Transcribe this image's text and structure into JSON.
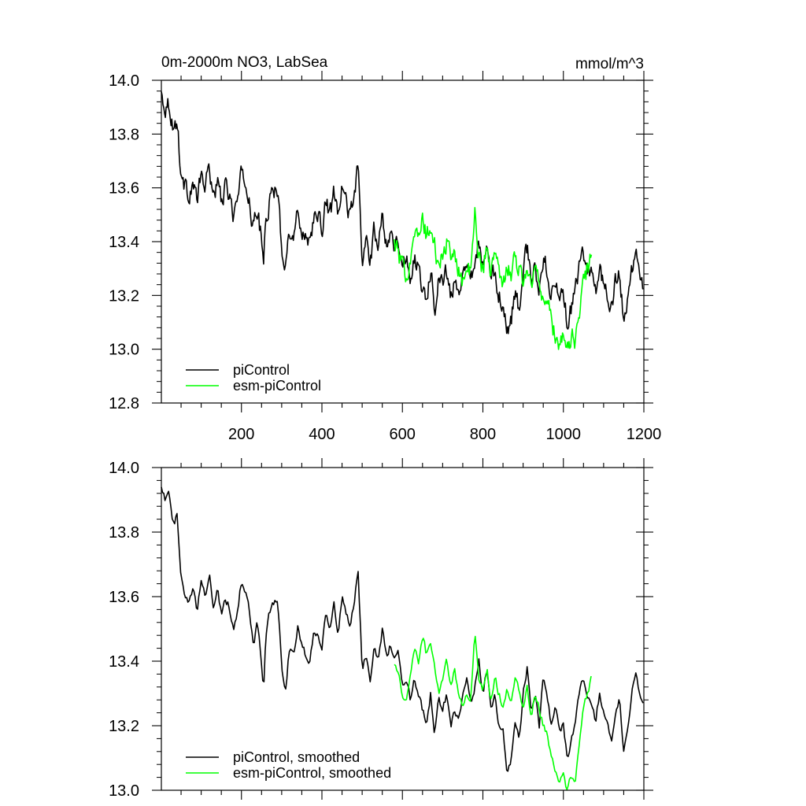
{
  "chart_data": [
    {
      "type": "line",
      "title": "0m-2000m NO3, LabSea",
      "units": "mmol/m^3",
      "xlim": [
        1,
        1200
      ],
      "ylim": [
        12.8,
        14.0
      ],
      "xticks": [
        200,
        400,
        600,
        800,
        1000,
        1200
      ],
      "xtick_labels": [
        "200",
        "400",
        "600",
        "800",
        "1000",
        "1200"
      ],
      "yticks": [
        12.8,
        13.0,
        13.2,
        13.4,
        13.6,
        13.8,
        14.0
      ],
      "ytick_labels": [
        "12.8",
        "13.0",
        "13.2",
        "13.4",
        "13.6",
        "13.8",
        "14.0"
      ],
      "legend_position": "bottom-left",
      "series": [
        {
          "name": "piControl",
          "color": "#000000",
          "x": [
            1,
            10,
            20,
            30,
            40,
            50,
            60,
            70,
            80,
            90,
            100,
            110,
            120,
            130,
            140,
            150,
            160,
            170,
            180,
            190,
            200,
            210,
            220,
            230,
            240,
            250,
            255,
            260,
            270,
            280,
            290,
            300,
            310,
            320,
            330,
            340,
            350,
            360,
            370,
            380,
            390,
            400,
            410,
            420,
            430,
            440,
            450,
            460,
            470,
            480,
            490,
            500,
            510,
            520,
            530,
            540,
            550,
            560,
            570,
            580,
            590,
            600,
            610,
            620,
            630,
            640,
            650,
            660,
            670,
            680,
            690,
            700,
            710,
            720,
            730,
            740,
            750,
            760,
            770,
            780,
            790,
            800,
            810,
            820,
            830,
            840,
            850,
            860,
            870,
            880,
            890,
            900,
            910,
            920,
            930,
            940,
            950,
            960,
            970,
            980,
            990,
            1000,
            1010,
            1020,
            1030,
            1040,
            1050,
            1060,
            1070,
            1080,
            1090,
            1100,
            1110,
            1120,
            1130,
            1140,
            1150,
            1160,
            1170,
            1180,
            1190,
            1200
          ],
          "values": [
            13.95,
            13.9,
            13.92,
            13.82,
            13.85,
            13.65,
            13.6,
            13.58,
            13.62,
            13.55,
            13.65,
            13.6,
            13.68,
            13.57,
            13.62,
            13.55,
            13.6,
            13.57,
            13.5,
            13.55,
            13.65,
            13.62,
            13.55,
            13.45,
            13.52,
            13.4,
            13.32,
            13.48,
            13.55,
            13.58,
            13.6,
            13.38,
            13.32,
            13.45,
            13.42,
            13.5,
            13.45,
            13.42,
            13.4,
            13.5,
            13.48,
            13.45,
            13.55,
            13.5,
            13.58,
            13.48,
            13.6,
            13.55,
            13.5,
            13.58,
            13.68,
            13.3,
            13.42,
            13.32,
            13.45,
            13.38,
            13.5,
            13.4,
            13.45,
            13.38,
            13.42,
            13.3,
            13.35,
            13.25,
            13.35,
            13.3,
            13.22,
            13.2,
            13.3,
            13.15,
            13.28,
            13.25,
            13.3,
            13.18,
            13.25,
            13.2,
            13.3,
            13.35,
            13.28,
            13.32,
            13.4,
            13.3,
            13.38,
            13.25,
            13.3,
            13.2,
            13.18,
            13.05,
            13.1,
            13.22,
            13.15,
            13.3,
            13.38,
            13.25,
            13.3,
            13.2,
            13.35,
            13.3,
            13.2,
            13.25,
            13.18,
            13.2,
            13.1,
            13.15,
            13.22,
            13.3,
            13.35,
            13.3,
            13.28,
            13.22,
            13.3,
            13.25,
            13.2,
            13.15,
            13.25,
            13.28,
            13.1,
            13.2,
            13.3,
            13.35,
            13.3,
            13.2
          ]
        },
        {
          "name": "esm-piControl",
          "color": "#00ff00",
          "x": [
            580,
            590,
            600,
            610,
            620,
            630,
            640,
            650,
            660,
            670,
            680,
            690,
            700,
            710,
            720,
            730,
            740,
            750,
            760,
            770,
            780,
            790,
            800,
            810,
            820,
            830,
            840,
            850,
            860,
            870,
            880,
            890,
            900,
            910,
            920,
            930,
            940,
            950,
            960,
            970,
            980,
            990,
            1000,
            1010,
            1020,
            1030,
            1040,
            1050,
            1060,
            1070
          ],
          "values": [
            13.4,
            13.35,
            13.3,
            13.28,
            13.35,
            13.45,
            13.4,
            13.48,
            13.42,
            13.45,
            13.38,
            13.3,
            13.35,
            13.4,
            13.32,
            13.38,
            13.3,
            13.25,
            13.3,
            13.28,
            13.5,
            13.35,
            13.3,
            13.38,
            13.28,
            13.35,
            13.3,
            13.25,
            13.32,
            13.28,
            13.35,
            13.3,
            13.25,
            13.32,
            13.22,
            13.3,
            13.25,
            13.2,
            13.18,
            13.1,
            13.05,
            13.02,
            13.05,
            13.0,
            13.05,
            13.02,
            13.15,
            13.25,
            13.3,
            13.35
          ]
        }
      ],
      "series_render": {
        "black_jitter_amplitude": 0.055,
        "green_jitter_amplitude": 0.06,
        "step": 2
      }
    },
    {
      "type": "line",
      "title": "",
      "xlim": [
        1,
        1200
      ],
      "ylim": [
        13.0,
        14.0
      ],
      "xticks": [
        200,
        400,
        600,
        800,
        1000,
        1200
      ],
      "xtick_labels": [
        "",
        "",
        "",
        "",
        "",
        ""
      ],
      "yticks": [
        13.0,
        13.2,
        13.4,
        13.6,
        13.8,
        14.0
      ],
      "ytick_labels": [
        "13.0",
        "13.2",
        "13.4",
        "13.6",
        "13.8",
        "14.0"
      ],
      "legend_position": "bottom-left",
      "series": [
        {
          "name": "piControl, smoothed",
          "color": "#000000",
          "x": [
            1,
            10,
            20,
            30,
            40,
            50,
            60,
            70,
            80,
            90,
            100,
            110,
            120,
            130,
            140,
            150,
            160,
            170,
            180,
            190,
            200,
            210,
            220,
            230,
            240,
            250,
            255,
            260,
            270,
            280,
            290,
            300,
            310,
            320,
            330,
            340,
            350,
            360,
            370,
            380,
            390,
            400,
            410,
            420,
            430,
            440,
            450,
            460,
            470,
            480,
            490,
            500,
            510,
            520,
            530,
            540,
            550,
            560,
            570,
            580,
            590,
            600,
            610,
            620,
            630,
            640,
            650,
            660,
            670,
            680,
            690,
            700,
            710,
            720,
            730,
            740,
            750,
            760,
            770,
            780,
            790,
            800,
            810,
            820,
            830,
            840,
            850,
            860,
            870,
            880,
            890,
            900,
            910,
            920,
            930,
            940,
            950,
            960,
            970,
            980,
            990,
            1000,
            1010,
            1020,
            1030,
            1040,
            1050,
            1060,
            1070,
            1080,
            1090,
            1100,
            1110,
            1120,
            1130,
            1140,
            1150,
            1160,
            1170,
            1180,
            1190,
            1200
          ],
          "values": [
            13.95,
            13.9,
            13.92,
            13.82,
            13.85,
            13.65,
            13.6,
            13.58,
            13.62,
            13.55,
            13.65,
            13.6,
            13.68,
            13.57,
            13.62,
            13.55,
            13.6,
            13.57,
            13.5,
            13.55,
            13.65,
            13.62,
            13.55,
            13.45,
            13.52,
            13.4,
            13.32,
            13.48,
            13.55,
            13.58,
            13.6,
            13.38,
            13.32,
            13.45,
            13.42,
            13.5,
            13.45,
            13.42,
            13.4,
            13.5,
            13.48,
            13.45,
            13.55,
            13.5,
            13.58,
            13.48,
            13.6,
            13.55,
            13.5,
            13.58,
            13.68,
            13.37,
            13.42,
            13.35,
            13.45,
            13.4,
            13.5,
            13.42,
            13.45,
            13.4,
            13.42,
            13.33,
            13.35,
            13.28,
            13.35,
            13.3,
            13.25,
            13.2,
            13.3,
            13.17,
            13.28,
            13.25,
            13.3,
            13.2,
            13.25,
            13.22,
            13.3,
            13.35,
            13.28,
            13.32,
            13.4,
            13.3,
            13.38,
            13.25,
            13.3,
            13.2,
            13.18,
            13.05,
            13.1,
            13.22,
            13.15,
            13.3,
            13.38,
            13.25,
            13.3,
            13.2,
            13.35,
            13.3,
            13.2,
            13.25,
            13.18,
            13.2,
            13.1,
            13.15,
            13.22,
            13.3,
            13.35,
            13.3,
            13.28,
            13.22,
            13.3,
            13.25,
            13.2,
            13.15,
            13.25,
            13.28,
            13.12,
            13.2,
            13.3,
            13.36,
            13.3,
            13.28
          ]
        },
        {
          "name": "esm-piControl, smoothed",
          "color": "#00ff00",
          "x": [
            580,
            590,
            600,
            610,
            620,
            630,
            640,
            650,
            660,
            670,
            680,
            690,
            700,
            710,
            720,
            730,
            740,
            750,
            760,
            770,
            780,
            790,
            800,
            810,
            820,
            830,
            840,
            850,
            860,
            870,
            880,
            890,
            900,
            910,
            920,
            930,
            940,
            950,
            960,
            970,
            980,
            990,
            1000,
            1010,
            1020,
            1030,
            1040,
            1050,
            1060,
            1070
          ],
          "values": [
            13.4,
            13.35,
            13.3,
            13.28,
            13.35,
            13.45,
            13.4,
            13.48,
            13.42,
            13.45,
            13.38,
            13.3,
            13.35,
            13.4,
            13.32,
            13.38,
            13.3,
            13.25,
            13.3,
            13.28,
            13.5,
            13.35,
            13.3,
            13.38,
            13.28,
            13.35,
            13.3,
            13.25,
            13.32,
            13.28,
            13.35,
            13.3,
            13.25,
            13.32,
            13.22,
            13.3,
            13.25,
            13.2,
            13.18,
            13.1,
            13.05,
            13.02,
            13.05,
            13.0,
            13.05,
            13.02,
            13.15,
            13.25,
            13.3,
            13.35
          ]
        }
      ],
      "series_render": {
        "black_jitter_amplitude": 0.02,
        "green_jitter_amplitude": 0.02,
        "step": 3
      }
    }
  ]
}
